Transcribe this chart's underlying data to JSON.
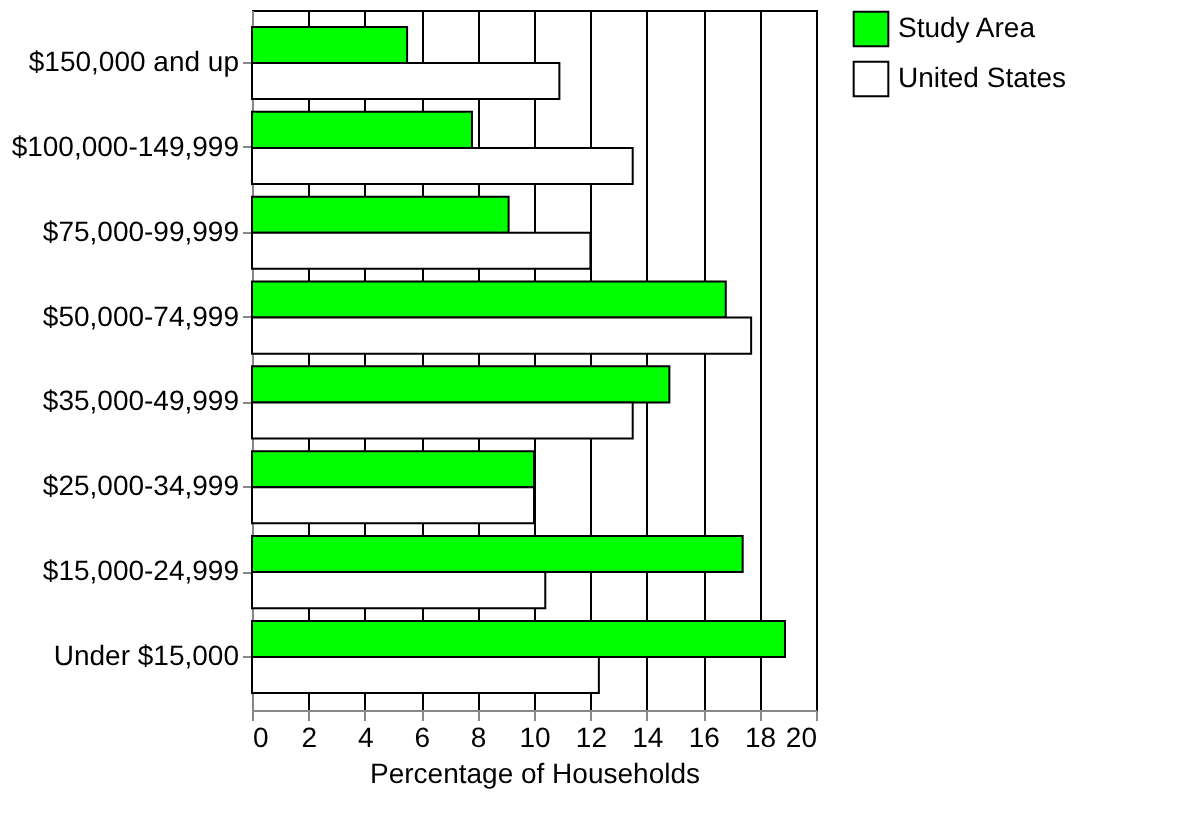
{
  "chart_data": {
    "type": "bar",
    "orientation": "horizontal",
    "xlabel": "Percentage of Households",
    "categories": [
      "$150,000 and up",
      "$100,000-149,999",
      "$75,000-99,999",
      "$50,000-74,999",
      "$35,000-49,999",
      "$25,000-34,999",
      "$15,000-24,999",
      "Under $15,000"
    ],
    "series": [
      {
        "name": "Study Area",
        "color": "#00ff00",
        "values": [
          5.5,
          7.8,
          9.1,
          16.8,
          14.8,
          10.0,
          17.4,
          18.9
        ]
      },
      {
        "name": "United States",
        "color": "#ffffff",
        "values": [
          10.9,
          13.5,
          12.0,
          17.7,
          13.5,
          10.0,
          10.4,
          12.3
        ]
      }
    ],
    "xlim": [
      0,
      20
    ],
    "xticks": [
      0,
      2,
      4,
      6,
      8,
      10,
      12,
      14,
      16,
      18,
      20
    ],
    "grid": "x",
    "legend": "top right"
  }
}
